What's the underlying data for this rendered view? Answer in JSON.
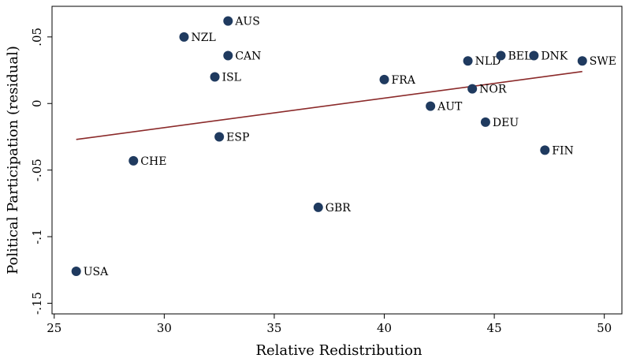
{
  "chart_data": {
    "type": "scatter",
    "title": "",
    "xlabel": "Relative Redistribution",
    "ylabel": "Political Participation (residual)",
    "xlim": [
      24.9,
      50.8
    ],
    "ylim": [
      -0.158,
      0.073
    ],
    "xticks": [
      25,
      30,
      35,
      40,
      45,
      50
    ],
    "xtick_labels": [
      "25",
      "30",
      "35",
      "40",
      "45",
      "50"
    ],
    "yticks": [
      -0.15,
      -0.1,
      -0.05,
      0,
      0.05
    ],
    "ytick_labels": [
      "-.15",
      "-.1",
      "-.05",
      "0",
      ".05"
    ],
    "grid": false,
    "points": [
      {
        "label": "AUS",
        "x": 32.9,
        "y": 0.062
      },
      {
        "label": "NZL",
        "x": 30.9,
        "y": 0.05
      },
      {
        "label": "CAN",
        "x": 32.9,
        "y": 0.036
      },
      {
        "label": "ISL",
        "x": 32.3,
        "y": 0.02
      },
      {
        "label": "ESP",
        "x": 32.5,
        "y": -0.025
      },
      {
        "label": "CHE",
        "x": 28.6,
        "y": -0.043
      },
      {
        "label": "USA",
        "x": 26.0,
        "y": -0.126
      },
      {
        "label": "GBR",
        "x": 37.0,
        "y": -0.078
      },
      {
        "label": "FRA",
        "x": 40.0,
        "y": 0.018
      },
      {
        "label": "AUT",
        "x": 42.1,
        "y": -0.002
      },
      {
        "label": "NLD",
        "x": 43.8,
        "y": 0.032
      },
      {
        "label": "NOR",
        "x": 44.0,
        "y": 0.011
      },
      {
        "label": "BEL",
        "x": 45.3,
        "y": 0.036
      },
      {
        "label": "DNK",
        "x": 46.8,
        "y": 0.036
      },
      {
        "label": "SWE",
        "x": 49.0,
        "y": 0.032
      },
      {
        "label": "DEU",
        "x": 44.6,
        "y": -0.014
      },
      {
        "label": "FIN",
        "x": 47.3,
        "y": -0.035
      }
    ],
    "fit_line": {
      "x": [
        26.0,
        49.0
      ],
      "y": [
        -0.027,
        0.024
      ]
    },
    "colors": {
      "marker": "#1f3a5f",
      "fit_line": "#8b2a2a",
      "axis": "#000000"
    }
  }
}
